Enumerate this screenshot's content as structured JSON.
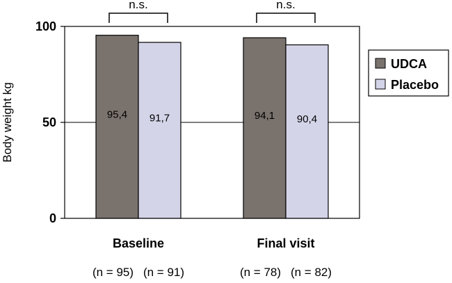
{
  "chart_data": {
    "type": "bar",
    "title": "",
    "xlabel": "",
    "ylabel": "Body weight kg",
    "ylim": [
      0,
      100
    ],
    "yticks": [
      0,
      50,
      100
    ],
    "grid": true,
    "legend_position": "right",
    "categories": [
      "Baseline",
      "Final visit"
    ],
    "series": [
      {
        "name": "UDCA",
        "values": [
          95.4,
          94.1
        ],
        "labels": [
          "95,4",
          "94,1"
        ],
        "color": "#7a726d"
      },
      {
        "name": "Placebo",
        "values": [
          91.7,
          90.4
        ],
        "labels": [
          "91,7",
          "90,4"
        ],
        "color": "#d4d4e9"
      }
    ],
    "sample_sizes": [
      [
        "(n = 95)",
        "(n = 91)"
      ],
      [
        "(n = 78)",
        "(n = 82)"
      ]
    ],
    "significance": [
      "n.s.",
      "n.s."
    ]
  }
}
